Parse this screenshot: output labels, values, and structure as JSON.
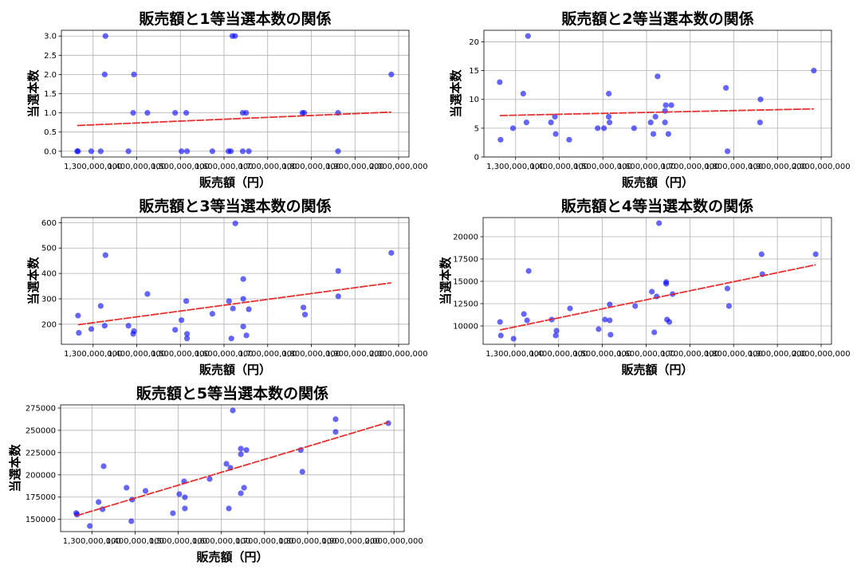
{
  "chart_data": [
    {
      "type": "scatter",
      "title": "販売額と1等当選本数の関係",
      "xlabel": "販売額（円）",
      "ylabel": "当選本数",
      "xlim": [
        1227400000,
        2023700000
      ],
      "ylim": [
        -0.15,
        3.15
      ],
      "grid": true,
      "xticks": [
        1300000000,
        1400000000,
        1500000000,
        1600000000,
        1700000000,
        1800000000,
        1900000000,
        2000000000
      ],
      "xtick_labels": [
        "1,300,000,000",
        "1,400,000,000",
        "1,500,000,000",
        "1,600,000,000",
        "1,700,000,000",
        "1,800,000,000",
        "1,900,000,000",
        "2,000,000,000"
      ],
      "yticks": [
        0,
        0.5,
        1,
        1.5,
        2,
        2.5,
        3
      ],
      "ytick_labels": [
        "0.0",
        "0.5",
        "1.0",
        "1.5",
        "2.0",
        "2.5",
        "3.0"
      ],
      "points": [
        [
          1263700000,
          0
        ],
        [
          1265500000,
          0
        ],
        [
          1295800000,
          0
        ],
        [
          1317500000,
          0
        ],
        [
          1326600000,
          2
        ],
        [
          1328400000,
          3
        ],
        [
          1381000000,
          0
        ],
        [
          1391900000,
          1
        ],
        [
          1393700000,
          2
        ],
        [
          1424500000,
          1
        ],
        [
          1488000000,
          1
        ],
        [
          1502500000,
          0
        ],
        [
          1513400000,
          1
        ],
        [
          1515200000,
          0
        ],
        [
          1573300000,
          0
        ],
        [
          1610200000,
          0
        ],
        [
          1615600000,
          0
        ],
        [
          1619200000,
          3
        ],
        [
          1625300000,
          3
        ],
        [
          1642800000,
          0
        ],
        [
          1642800000,
          1
        ],
        [
          1650700000,
          1
        ],
        [
          1656700000,
          0
        ],
        [
          1779400000,
          1
        ],
        [
          1783700000,
          1
        ],
        [
          1861100000,
          1
        ],
        [
          1861100000,
          0
        ],
        [
          1983200000,
          2
        ]
      ],
      "trend": {
        "x": [
          1263700000,
          1983200000
        ],
        "y": [
          0.67,
          1.02
        ]
      },
      "colors": {
        "points": "#0000ff",
        "trend": "#e41a1c"
      }
    },
    {
      "type": "scatter",
      "title": "販売額と2等当選本数の関係",
      "xlabel": "販売額（円）",
      "ylabel": "当選本数",
      "xlim": [
        1227400000,
        2023700000
      ],
      "ylim": [
        0,
        22
      ],
      "grid": true,
      "xticks": [
        1300000000,
        1400000000,
        1500000000,
        1600000000,
        1700000000,
        1800000000,
        1900000000,
        2000000000
      ],
      "xtick_labels": [
        "1,300,000,000",
        "1,400,000,000",
        "1,500,000,000",
        "1,600,000,000",
        "1,700,000,000",
        "1,800,000,000",
        "1,900,000,000",
        "2,000,000,000"
      ],
      "yticks": [
        0,
        5,
        10,
        15,
        20
      ],
      "ytick_labels": [
        "0",
        "5",
        "10",
        "15",
        "20"
      ],
      "points": [
        [
          1263700000,
          13
        ],
        [
          1265500000,
          3
        ],
        [
          1294000000,
          5
        ],
        [
          1317500000,
          11
        ],
        [
          1324800000,
          6
        ],
        [
          1328400000,
          21
        ],
        [
          1381000000,
          6
        ],
        [
          1390100000,
          7
        ],
        [
          1391900000,
          4
        ],
        [
          1422700000,
          3
        ],
        [
          1488000000,
          5
        ],
        [
          1502500000,
          5
        ],
        [
          1513400000,
          11
        ],
        [
          1513400000,
          7
        ],
        [
          1515200000,
          6
        ],
        [
          1571400000,
          5
        ],
        [
          1609500000,
          6
        ],
        [
          1615600000,
          4
        ],
        [
          1620400000,
          7
        ],
        [
          1625300000,
          14
        ],
        [
          1642200000,
          8
        ],
        [
          1642200000,
          6
        ],
        [
          1644000000,
          9
        ],
        [
          1650000000,
          4
        ],
        [
          1656700000,
          9
        ],
        [
          1781900000,
          12
        ],
        [
          1785500000,
          1
        ],
        [
          1859900000,
          6
        ],
        [
          1861100000,
          10
        ],
        [
          1983200000,
          15
        ]
      ],
      "trend": {
        "x": [
          1263700000,
          1983200000
        ],
        "y": [
          7.2,
          8.35
        ]
      },
      "colors": {
        "points": "#0000ff",
        "trend": "#e41a1c"
      }
    },
    {
      "type": "scatter",
      "title": "販売額と3等当選本数の関係",
      "xlabel": "販売額（円）",
      "ylabel": "当選本数",
      "xlim": [
        1227400000,
        2023700000
      ],
      "ylim": [
        121,
        620
      ],
      "grid": true,
      "xticks": [
        1300000000,
        1400000000,
        1500000000,
        1600000000,
        1700000000,
        1800000000,
        1900000000,
        2000000000
      ],
      "xtick_labels": [
        "1,300,000,000",
        "1,400,000,000",
        "1,500,000,000",
        "1,600,000,000",
        "1,700,000,000",
        "1,800,000,000",
        "1,900,000,000",
        "2,000,000,000"
      ],
      "yticks": [
        200,
        300,
        400,
        500,
        600
      ],
      "ytick_labels": [
        "200",
        "300",
        "400",
        "500",
        "600"
      ],
      "points": [
        [
          1265500000,
          234
        ],
        [
          1267300000,
          166
        ],
        [
          1295800000,
          181
        ],
        [
          1317500000,
          272
        ],
        [
          1326600000,
          194
        ],
        [
          1328400000,
          472
        ],
        [
          1381000000,
          194
        ],
        [
          1391900000,
          162
        ],
        [
          1393700000,
          173
        ],
        [
          1424500000,
          319
        ],
        [
          1488000000,
          178
        ],
        [
          1502500000,
          216
        ],
        [
          1513400000,
          291
        ],
        [
          1515200000,
          162
        ],
        [
          1515200000,
          144
        ],
        [
          1573300000,
          241
        ],
        [
          1611400000,
          291
        ],
        [
          1616800000,
          144
        ],
        [
          1620400000,
          262
        ],
        [
          1625900000,
          597
        ],
        [
          1644000000,
          378
        ],
        [
          1644000000,
          300
        ],
        [
          1644000000,
          191
        ],
        [
          1651300000,
          156
        ],
        [
          1656700000,
          259
        ],
        [
          1781900000,
          266
        ],
        [
          1785500000,
          238
        ],
        [
          1861700000,
          410
        ],
        [
          1861700000,
          310
        ],
        [
          1983200000,
          481
        ]
      ],
      "trend": {
        "x": [
          1265500000,
          1983200000
        ],
        "y": [
          198,
          363
        ]
      },
      "colors": {
        "points": "#0000ff",
        "trend": "#e41a1c"
      }
    },
    {
      "type": "scatter",
      "title": "販売額と4等当選本数の関係",
      "xlabel": "販売額（円）",
      "ylabel": "当選本数",
      "xlim": [
        1227400000,
        2023700000
      ],
      "ylim": [
        7946,
        22143
      ],
      "grid": true,
      "xticks": [
        1300000000,
        1400000000,
        1500000000,
        1600000000,
        1700000000,
        1800000000,
        1900000000,
        2000000000
      ],
      "xtick_labels": [
        "1,300,000,000",
        "1,400,000,000",
        "1,500,000,000",
        "1,600,000,000",
        "1,700,000,000",
        "1,800,000,000",
        "1,900,000,000",
        "2,000,000,000"
      ],
      "yticks": [
        10000,
        12500,
        15000,
        17500,
        20000
      ],
      "ytick_labels": [
        "10000",
        "12500",
        "15000",
        "17500",
        "20000"
      ],
      "points": [
        [
          1266100000,
          10446
        ],
        [
          1267900000,
          8929
        ],
        [
          1297000000,
          8571
        ],
        [
          1320600000,
          11339
        ],
        [
          1327900000,
          10625
        ],
        [
          1331500000,
          16161
        ],
        [
          1384200000,
          10714
        ],
        [
          1393300000,
          8929
        ],
        [
          1395100000,
          9464
        ],
        [
          1426000000,
          11964
        ],
        [
          1491400000,
          9643
        ],
        [
          1505900000,
          10714
        ],
        [
          1516800000,
          12411
        ],
        [
          1516800000,
          10625
        ],
        [
          1518700000,
          9018
        ],
        [
          1575000000,
          12232
        ],
        [
          1613100000,
          13839
        ],
        [
          1618600000,
          9286
        ],
        [
          1624000000,
          13304
        ],
        [
          1629500000,
          21518
        ],
        [
          1645800000,
          14911
        ],
        [
          1645800000,
          14732
        ],
        [
          1647700000,
          10714
        ],
        [
          1653100000,
          10446
        ],
        [
          1660400000,
          13571
        ],
        [
          1785800000,
          14196
        ],
        [
          1789400000,
          12232
        ],
        [
          1863900000,
          18036
        ],
        [
          1865700000,
          15804
        ],
        [
          1987500000,
          18036
        ]
      ],
      "trend": {
        "x": [
          1266100000,
          1987500000
        ],
        "y": [
          9550,
          16850
        ]
      },
      "colors": {
        "points": "#0000ff",
        "trend": "#e41a1c"
      }
    },
    {
      "type": "scatter",
      "title": "販売額と5等当選本数の関係",
      "xlabel": "販売額（円）",
      "ylabel": "当選本数",
      "xlim": [
        1227400000,
        2023700000
      ],
      "ylim": [
        136277,
        278580
      ],
      "grid": true,
      "xticks": [
        1300000000,
        1400000000,
        1500000000,
        1600000000,
        1700000000,
        1800000000,
        1900000000,
        2000000000
      ],
      "xtick_labels": [
        "1,300,000,000",
        "1,400,000,000",
        "1,500,000,000",
        "1,600,000,000",
        "1,700,000,000",
        "1,800,000,000",
        "1,900,000,000",
        "2,000,000,000"
      ],
      "yticks": [
        150000,
        175000,
        200000,
        225000,
        250000,
        275000
      ],
      "ytick_labels": [
        "150000",
        "175000",
        "200000",
        "225000",
        "250000",
        "275000"
      ],
      "points": [
        [
          1263600000,
          157160
        ],
        [
          1265400000,
          155370
        ],
        [
          1295100000,
          142540
        ],
        [
          1315400000,
          169390
        ],
        [
          1324700000,
          161340
        ],
        [
          1327200000,
          209660
        ],
        [
          1380200000,
          185500
        ],
        [
          1391400000,
          147910
        ],
        [
          1393200000,
          172070
        ],
        [
          1424100000,
          181920
        ],
        [
          1487700000,
          156860
        ],
        [
          1502500000,
          178340
        ],
        [
          1513600000,
          192660
        ],
        [
          1515400000,
          174760
        ],
        [
          1515400000,
          162230
        ],
        [
          1572800000,
          195340
        ],
        [
          1611700000,
          212340
        ],
        [
          1617300000,
          162230
        ],
        [
          1621000000,
          207870
        ],
        [
          1626500000,
          272300
        ],
        [
          1645100000,
          229350
        ],
        [
          1645100000,
          223080
        ],
        [
          1645100000,
          179230
        ],
        [
          1652500000,
          185500
        ],
        [
          1658000000,
          227860
        ],
        [
          1784000000,
          227860
        ],
        [
          1787700000,
          203400
        ],
        [
          1864800000,
          262460
        ],
        [
          1864800000,
          248140
        ],
        [
          1987000000,
          257990
        ]
      ],
      "trend": {
        "x": [
          1263600000,
          1987000000
        ],
        "y": [
          154000,
          259000
        ]
      },
      "colors": {
        "points": "#0000ff",
        "trend": "#e41a1c"
      }
    }
  ]
}
